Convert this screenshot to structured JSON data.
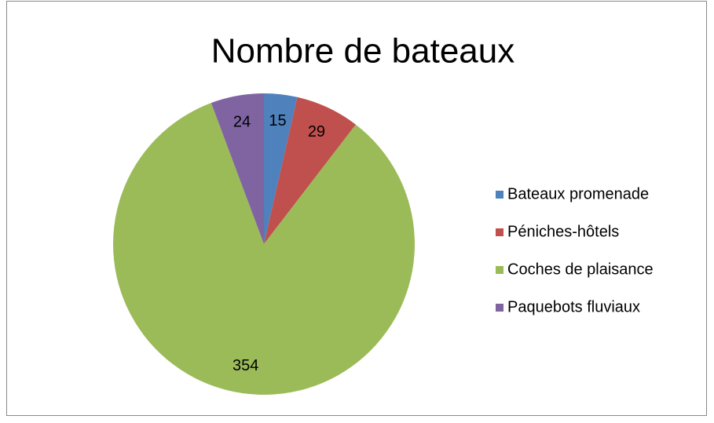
{
  "chart_data": {
    "type": "pie",
    "title": "Nombre de bateaux",
    "categories": [
      "Bateaux promenade",
      "Péniches-hôtels",
      "Coches de plaisance",
      "Paquebots fluviaux"
    ],
    "values": [
      15,
      29,
      354,
      24
    ],
    "colors": [
      "#4f81bd",
      "#c0504d",
      "#9bbb59",
      "#8064a2"
    ],
    "legend": "right"
  }
}
